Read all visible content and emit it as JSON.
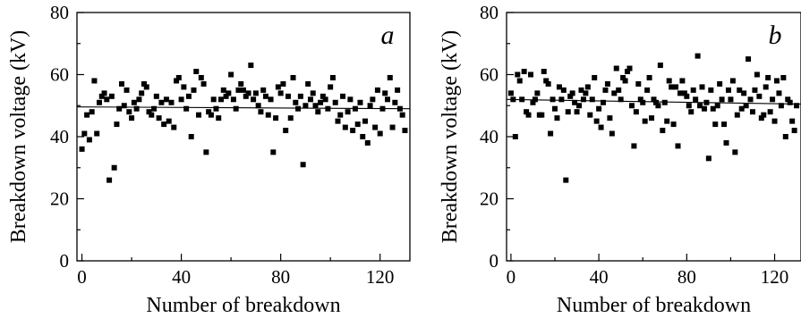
{
  "chart_data": [
    {
      "type": "scatter",
      "panel_label": "a",
      "xlabel": "Number of breakdown",
      "ylabel": "Breakdown voltage (kV)",
      "xlim": [
        -2,
        132
      ],
      "ylim": [
        0,
        80
      ],
      "xticks": [
        "0",
        "40",
        "80",
        "120"
      ],
      "yticks": [
        "0",
        "20",
        "40",
        "60",
        "80"
      ],
      "fit_line": {
        "x": [
          -2,
          132
        ],
        "y": [
          49.6,
          49.0
        ]
      },
      "series": [
        {
          "x": [
            0,
            1,
            2,
            3,
            4,
            5,
            6,
            7,
            8,
            9,
            10,
            11,
            12,
            13,
            14,
            15,
            16,
            17,
            18,
            19,
            20,
            21,
            22,
            23,
            24,
            25,
            26,
            27,
            28,
            29,
            30,
            31,
            32,
            33,
            34,
            35,
            36,
            37,
            38,
            39,
            40,
            41,
            42,
            43,
            44,
            45,
            46,
            47,
            48,
            49,
            50,
            51,
            52,
            53,
            54,
            55,
            56,
            57,
            58,
            59,
            60,
            61,
            62,
            63,
            64,
            65,
            66,
            67,
            68,
            69,
            70,
            71,
            72,
            73,
            74,
            75,
            76,
            77,
            78,
            79,
            80,
            81,
            82,
            83,
            84,
            85,
            86,
            87,
            88,
            89,
            90,
            91,
            92,
            93,
            94,
            95,
            96,
            97,
            98,
            99,
            100,
            101,
            102,
            103,
            104,
            105,
            106,
            107,
            108,
            109,
            110,
            111,
            112,
            113,
            114,
            115,
            116,
            117,
            118,
            119,
            120,
            121,
            122,
            123,
            124,
            125,
            126,
            127,
            128,
            129,
            130
          ],
          "y": [
            36,
            41,
            47,
            39,
            48,
            58,
            41,
            51,
            53,
            54,
            52,
            26,
            53,
            30,
            44,
            49,
            57,
            50,
            55,
            48,
            46,
            51,
            49,
            52,
            54,
            57,
            56,
            48,
            47,
            49,
            53,
            46,
            51,
            44,
            52,
            45,
            51,
            43,
            58,
            59,
            52,
            56,
            49,
            53,
            40,
            55,
            61,
            47,
            59,
            57,
            35,
            48,
            47,
            52,
            49,
            46,
            52,
            55,
            53,
            54,
            60,
            52,
            49,
            55,
            57,
            55,
            53,
            54,
            63,
            52,
            54,
            50,
            48,
            55,
            53,
            47,
            52,
            35,
            46,
            56,
            54,
            57,
            42,
            53,
            46,
            59,
            51,
            49,
            53,
            31,
            50,
            57,
            52,
            54,
            50,
            48,
            51,
            53,
            52,
            49,
            56,
            59,
            51,
            45,
            47,
            53,
            43,
            48,
            52,
            42,
            49,
            44,
            51,
            40,
            45,
            38,
            50,
            52,
            43,
            55,
            41,
            49,
            54,
            52,
            59,
            43,
            51,
            55,
            49,
            47,
            42
          ]
        }
      ]
    },
    {
      "type": "scatter",
      "panel_label": "b",
      "xlabel": "Number of breakdown",
      "ylabel": "Breakdown voltage (kV)",
      "xlim": [
        -2,
        132
      ],
      "ylim": [
        0,
        80
      ],
      "xticks": [
        "0",
        "40",
        "80",
        "120"
      ],
      "yticks": [
        "0",
        "20",
        "40",
        "60",
        "80"
      ],
      "fit_line": {
        "x": [
          -2,
          132
        ],
        "y": [
          52.0,
          50.5
        ]
      },
      "series": [
        {
          "x": [
            0,
            1,
            2,
            3,
            4,
            5,
            6,
            7,
            8,
            9,
            10,
            11,
            12,
            13,
            14,
            15,
            16,
            17,
            18,
            19,
            20,
            21,
            22,
            23,
            24,
            25,
            26,
            27,
            28,
            29,
            30,
            31,
            32,
            33,
            34,
            35,
            36,
            37,
            38,
            39,
            40,
            41,
            42,
            43,
            44,
            45,
            46,
            47,
            48,
            49,
            50,
            51,
            52,
            53,
            54,
            55,
            56,
            57,
            58,
            59,
            60,
            61,
            62,
            63,
            64,
            65,
            66,
            67,
            68,
            69,
            70,
            71,
            72,
            73,
            74,
            75,
            76,
            77,
            78,
            79,
            80,
            81,
            82,
            83,
            84,
            85,
            86,
            87,
            88,
            89,
            90,
            91,
            92,
            93,
            94,
            95,
            96,
            97,
            98,
            99,
            100,
            101,
            102,
            103,
            104,
            105,
            106,
            107,
            108,
            109,
            110,
            111,
            112,
            113,
            114,
            115,
            116,
            117,
            118,
            119,
            120,
            121,
            122,
            123,
            124,
            125,
            126,
            127,
            128,
            129,
            130
          ],
          "y": [
            54,
            52,
            40,
            60,
            58,
            52,
            61,
            48,
            47,
            60,
            51,
            52,
            54,
            47,
            47,
            61,
            58,
            57,
            41,
            52,
            49,
            46,
            56,
            52,
            55,
            26,
            48,
            53,
            54,
            51,
            48,
            50,
            55,
            52,
            54,
            56,
            47,
            52,
            59,
            45,
            49,
            43,
            51,
            55,
            57,
            46,
            41,
            54,
            62,
            55,
            52,
            59,
            58,
            61,
            62,
            50,
            37,
            48,
            57,
            52,
            51,
            45,
            55,
            59,
            46,
            52,
            51,
            50,
            63,
            42,
            51,
            45,
            58,
            56,
            44,
            56,
            37,
            54,
            58,
            54,
            53,
            50,
            48,
            55,
            52,
            66,
            50,
            56,
            49,
            51,
            33,
            55,
            49,
            44,
            50,
            57,
            52,
            44,
            38,
            55,
            52,
            58,
            35,
            47,
            55,
            49,
            54,
            50,
            65,
            52,
            48,
            55,
            60,
            53,
            46,
            47,
            56,
            59,
            48,
            52,
            45,
            58,
            54,
            50,
            59,
            40,
            52,
            51,
            45,
            42,
            50
          ]
        }
      ]
    }
  ]
}
